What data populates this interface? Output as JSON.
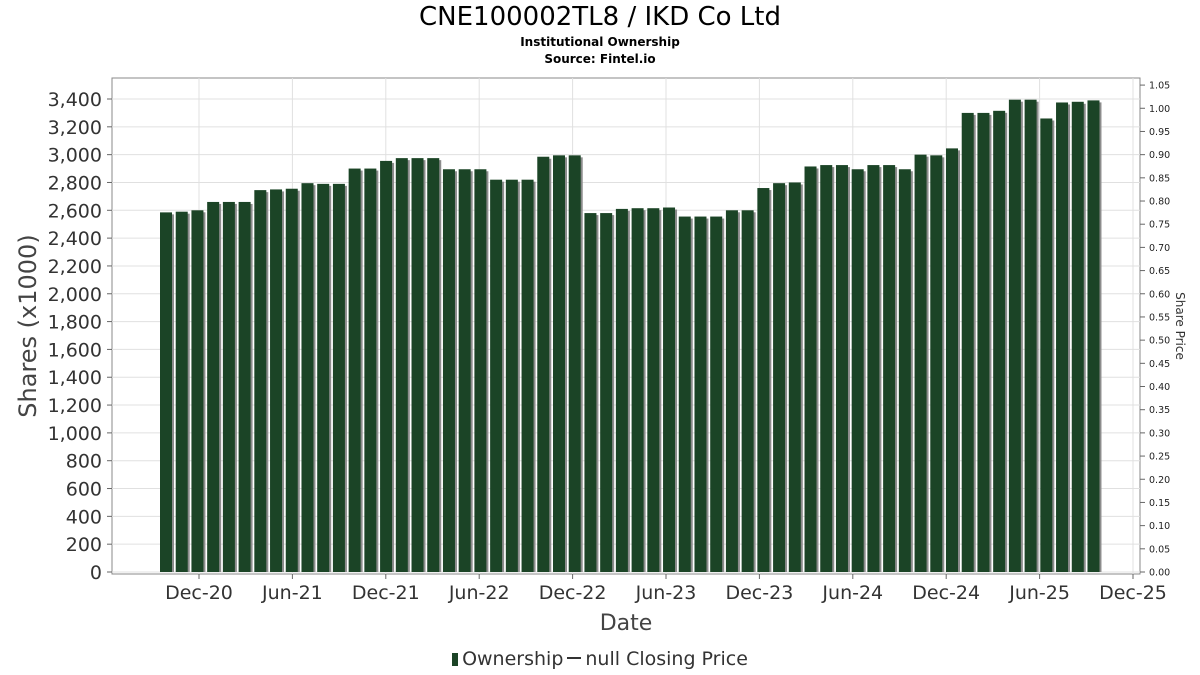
{
  "title": "CNE100002TL8 / IKD Co Ltd",
  "subtitle": "Institutional Ownership",
  "source": "Source: Fintel.io",
  "legend": {
    "ownership": "Ownership",
    "closing": "null Closing Price"
  },
  "colors": {
    "bar": "#1b4426",
    "bar_shadow": "#8c8c8c",
    "grid": "#e0e0e0",
    "plot_border": "#888888"
  },
  "chart_data": {
    "type": "bar",
    "xlabel": "Date",
    "ylabel": "Shares (x1000)",
    "y2label": "Share Price",
    "ylim": [
      0,
      3500
    ],
    "y2lim": [
      0,
      1.05
    ],
    "yticks": [
      "0",
      "200",
      "400",
      "600",
      "800",
      "1,000",
      "1,200",
      "1,400",
      "1,600",
      "1,800",
      "2,000",
      "2,200",
      "2,400",
      "2,600",
      "2,800",
      "3,000",
      "3,200",
      "3,400"
    ],
    "y2ticks": [
      "0.00",
      "0.05",
      "0.10",
      "0.15",
      "0.20",
      "0.25",
      "0.30",
      "0.35",
      "0.40",
      "0.45",
      "0.50",
      "0.55",
      "0.60",
      "0.65",
      "0.70",
      "0.75",
      "0.80",
      "0.85",
      "0.90",
      "0.95",
      "1.00",
      "1.05"
    ],
    "xticks": [
      "Dec-20",
      "Jun-21",
      "Dec-21",
      "Jun-22",
      "Dec-22",
      "Jun-23",
      "Dec-23",
      "Jun-24",
      "Dec-24",
      "Jun-25",
      "Dec-25"
    ],
    "grid": true,
    "legend_position": "bottom",
    "series": [
      {
        "name": "Ownership",
        "values": [
          2585,
          2590,
          2600,
          2660,
          2660,
          2660,
          2745,
          2750,
          2755,
          2795,
          2790,
          2790,
          2900,
          2900,
          2955,
          2975,
          2975,
          2975,
          2895,
          2895,
          2895,
          2820,
          2820,
          2820,
          2985,
          2995,
          2995,
          2580,
          2580,
          2610,
          2615,
          2615,
          2620,
          2555,
          2555,
          2555,
          2600,
          2600,
          2760,
          2795,
          2800,
          2915,
          2925,
          2925,
          2895,
          2925,
          2925,
          2895,
          3000,
          2995,
          3045,
          3300,
          3300,
          3315,
          3395,
          3395,
          3260,
          3375,
          3380,
          3390
        ]
      }
    ]
  }
}
